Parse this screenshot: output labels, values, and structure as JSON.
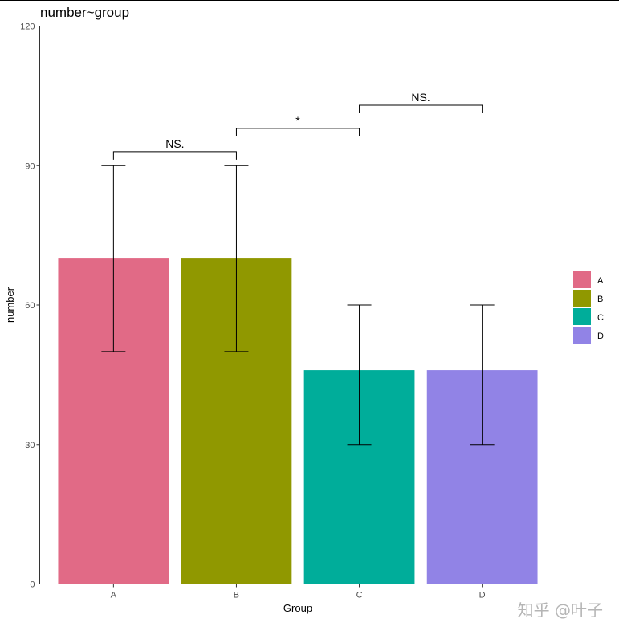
{
  "chart_data": {
    "type": "bar",
    "title": "number~group",
    "xlabel": "Group",
    "ylabel": "number",
    "ylim": [
      0,
      120
    ],
    "yticks": [
      0,
      30,
      60,
      90,
      120
    ],
    "categories": [
      "A",
      "B",
      "C",
      "D"
    ],
    "values": [
      70,
      70,
      46,
      46
    ],
    "error_bars": [
      {
        "low": 50,
        "high": 90
      },
      {
        "low": 50,
        "high": 90
      },
      {
        "low": 30,
        "high": 60
      },
      {
        "low": 30,
        "high": 60
      }
    ],
    "colors": [
      "#E16A86",
      "#909800",
      "#00AD9A",
      "#9183E6"
    ],
    "legend": {
      "entries": [
        "A",
        "B",
        "C",
        "D"
      ],
      "placement": "right"
    },
    "significance": [
      {
        "from": "A",
        "to": "B",
        "label": "NS.",
        "y": 93
      },
      {
        "from": "B",
        "to": "C",
        "label": "*",
        "y": 98
      },
      {
        "from": "C",
        "to": "D",
        "label": "NS.",
        "y": 103
      }
    ],
    "grid": false
  },
  "watermark": "知乎 @叶子"
}
